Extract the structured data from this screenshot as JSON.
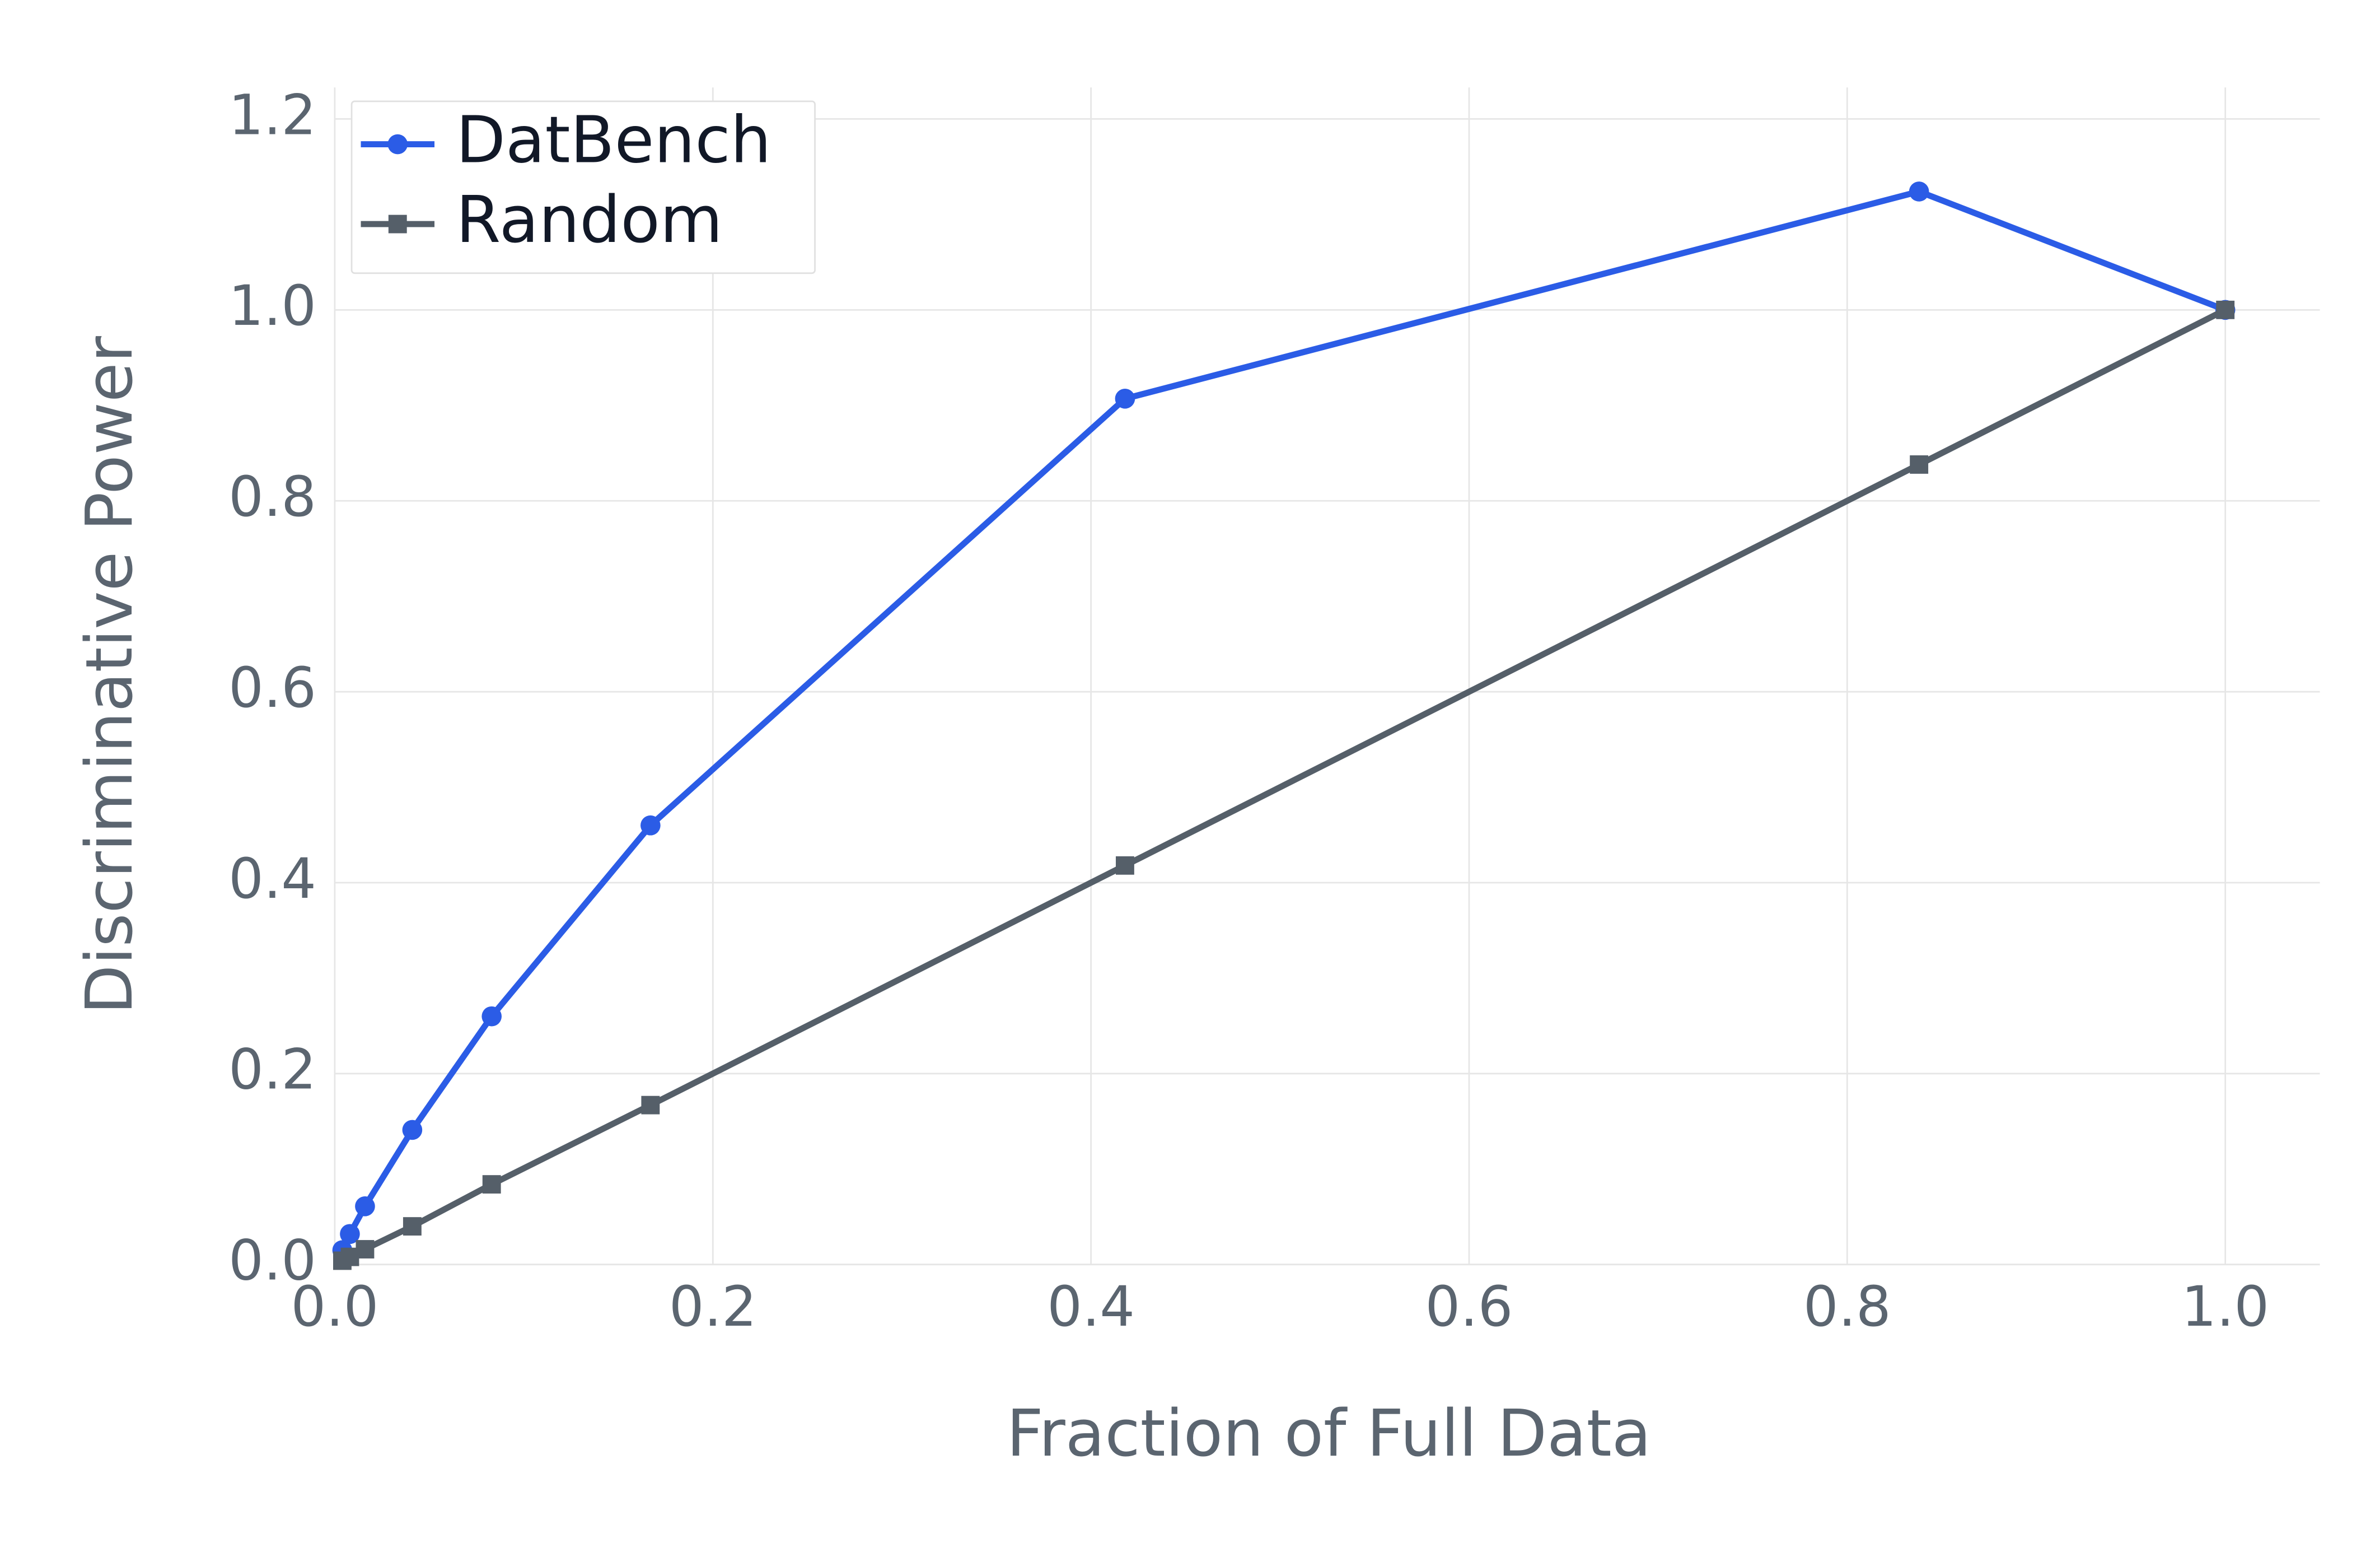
{
  "chart_data": {
    "type": "line",
    "x_label": "Fraction of Full Data",
    "y_label": "Discriminative Power",
    "x": [
      0.004,
      0.008,
      0.016,
      0.041,
      0.083,
      0.167,
      0.418,
      0.838,
      1.0
    ],
    "series": [
      {
        "name": "DatBench",
        "color": "#2b5ce6",
        "marker": "circle",
        "values": [
          0.015,
          0.032,
          0.061,
          0.141,
          0.26,
          0.46,
          0.907,
          1.124,
          1.0
        ]
      },
      {
        "name": "Random",
        "color": "#555f69",
        "marker": "square",
        "values": [
          0.004,
          0.008,
          0.016,
          0.04,
          0.084,
          0.167,
          0.418,
          0.838,
          1.0
        ]
      }
    ],
    "xlim": [
      0,
      1.05
    ],
    "ylim": [
      0,
      1.233
    ],
    "xticks": [
      {
        "value": 0,
        "label": "0.0"
      },
      0.2,
      0.4,
      0.6,
      0.8,
      {
        "value": 1,
        "label": "1.0"
      }
    ],
    "yticks": [
      {
        "value": 0,
        "label": "0.0"
      },
      0.2,
      0.4,
      0.6,
      0.8,
      {
        "value": 1,
        "label": "1.0"
      },
      1.2
    ],
    "grid": true,
    "legend": "upper-left"
  }
}
